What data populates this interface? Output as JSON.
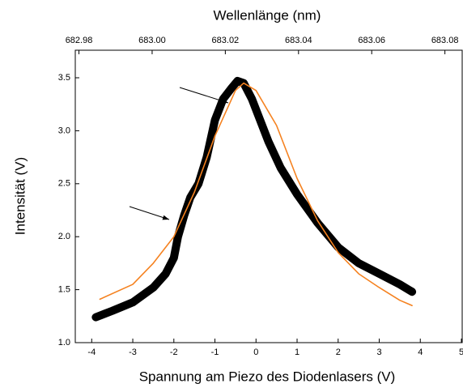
{
  "chart_data": {
    "type": "line",
    "xlabel": "Spannung am Piezo des Diodenlasers (V)",
    "ylabel": "Intensität (V)",
    "x2label": "Wellenlänge (nm)",
    "xlim": [
      -4.4,
      5
    ],
    "xticks": [
      -4,
      -3,
      -2,
      -1,
      0,
      1,
      2,
      3,
      4,
      5
    ],
    "x2lim": [
      682.979,
      683.0845
    ],
    "x2ticks": [
      {
        "value": 682.98,
        "label": "682.98"
      },
      {
        "value": 683.0,
        "label": "683.00"
      },
      {
        "value": 683.02,
        "label": "683.02"
      },
      {
        "value": 683.04,
        "label": "683.04"
      },
      {
        "value": 683.06,
        "label": "683.06"
      },
      {
        "value": 683.08,
        "label": "683.08"
      }
    ],
    "ylim": [
      1.0,
      3.76
    ],
    "yticks": [
      {
        "value": 1.0,
        "label": "1.0"
      },
      {
        "value": 1.5,
        "label": "1.5"
      },
      {
        "value": 2.0,
        "label": "2.0"
      },
      {
        "value": 2.5,
        "label": "2.5"
      },
      {
        "value": 3.0,
        "label": "3.0"
      },
      {
        "value": 3.5,
        "label": "3.5"
      }
    ],
    "series": [
      {
        "color": "#000000",
        "width": 10,
        "x": [
          -3.9,
          -3.5,
          -3,
          -2.5,
          -2.2,
          -2,
          -1.9,
          -1.75,
          -1.6,
          -1.4,
          -1.2,
          -1,
          -0.8,
          -0.6,
          -0.45,
          -0.3,
          -0.1,
          0.1,
          0.3,
          0.6,
          1,
          1.5,
          2,
          2.5,
          3,
          3.5,
          3.8
        ],
        "values": [
          1.24,
          1.3,
          1.38,
          1.52,
          1.65,
          1.8,
          2.0,
          2.2,
          2.37,
          2.5,
          2.75,
          3.1,
          3.3,
          3.4,
          3.47,
          3.45,
          3.3,
          3.1,
          2.9,
          2.65,
          2.4,
          2.13,
          1.9,
          1.75,
          1.65,
          1.55,
          1.48
        ]
      },
      {
        "color": "#f58220",
        "width": 1.6,
        "x": [
          -3.8,
          -3,
          -2.5,
          -2,
          -1.5,
          -1,
          -0.5,
          -0.3,
          0,
          0.5,
          1,
          1.5,
          2,
          2.5,
          3,
          3.5,
          3.8
        ],
        "values": [
          1.41,
          1.55,
          1.75,
          2.0,
          2.42,
          2.95,
          3.38,
          3.45,
          3.38,
          3.05,
          2.55,
          2.15,
          1.85,
          1.65,
          1.52,
          1.4,
          1.35
        ]
      }
    ]
  }
}
